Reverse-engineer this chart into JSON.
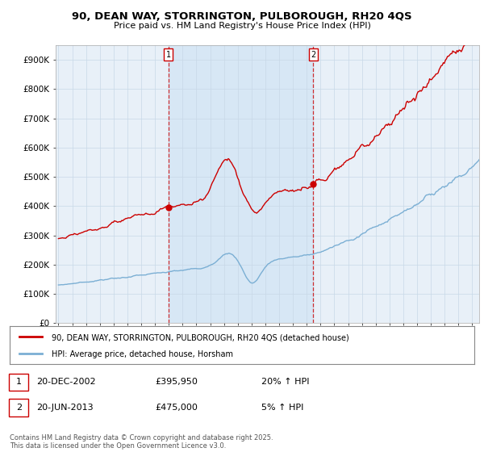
{
  "title": "90, DEAN WAY, STORRINGTON, PULBOROUGH, RH20 4QS",
  "subtitle": "Price paid vs. HM Land Registry's House Price Index (HPI)",
  "legend_line1": "90, DEAN WAY, STORRINGTON, PULBOROUGH, RH20 4QS (detached house)",
  "legend_line2": "HPI: Average price, detached house, Horsham",
  "footer": "Contains HM Land Registry data © Crown copyright and database right 2025.\nThis data is licensed under the Open Government Licence v3.0.",
  "sale1_label": "1",
  "sale2_label": "2",
  "sale1_date": "20-DEC-2002",
  "sale1_price": "£395,950",
  "sale1_hpi": "20% ↑ HPI",
  "sale2_date": "20-JUN-2013",
  "sale2_price": "£475,000",
  "sale2_hpi": "5% ↑ HPI",
  "property_color": "#cc0000",
  "hpi_color": "#7bafd4",
  "hpi_fill_color": "#d0e4f4",
  "vline_color": "#cc0000",
  "background_color": "#ffffff",
  "plot_bg_color": "#e8f0f8",
  "grid_color": "#c8d8e8",
  "ylim": [
    0,
    950000
  ],
  "yticks": [
    0,
    100000,
    200000,
    300000,
    400000,
    500000,
    600000,
    700000,
    800000,
    900000
  ],
  "ytick_labels": [
    "£0",
    "£100K",
    "£200K",
    "£300K",
    "£400K",
    "£500K",
    "£600K",
    "£700K",
    "£800K",
    "£900K"
  ],
  "sale1_x": 2002.97,
  "sale1_y": 395950,
  "sale2_x": 2013.47,
  "sale2_y": 475000,
  "xlim": [
    1994.8,
    2025.5
  ],
  "figwidth": 6.0,
  "figheight": 5.6,
  "dpi": 100
}
